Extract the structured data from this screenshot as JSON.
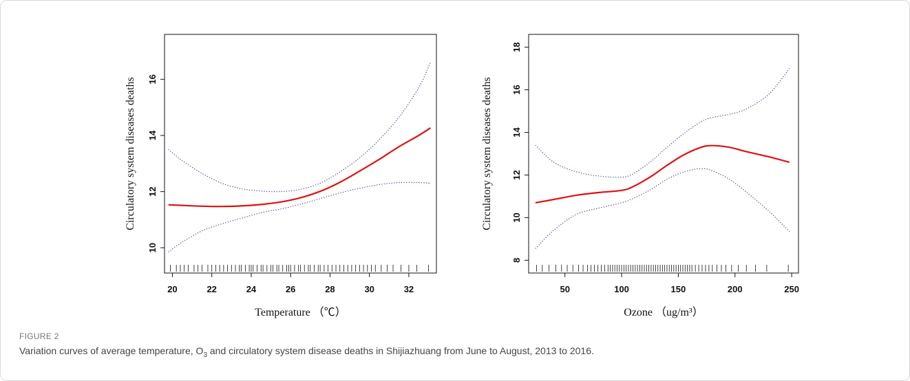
{
  "figure": {
    "label": "FIGURE 2",
    "caption_pre": "Variation curves of average temperature, O",
    "caption_sub": "3",
    "caption_post": " and circulatory system disease deaths in Shijiazhuang from June to August, 2013 to 2016."
  },
  "colors": {
    "fit": "#e01010",
    "ci": "#2a2a8a",
    "axis": "#111111"
  },
  "chart_data": [
    {
      "type": "line",
      "xlabel": "Temperature （℃）",
      "ylabel": "Circulatory system diseases deaths",
      "xlim": [
        19.6,
        33.4
      ],
      "ylim": [
        9.1,
        17.6
      ],
      "xticks": [
        20,
        22,
        24,
        26,
        28,
        30,
        32
      ],
      "yticks": [
        10,
        12,
        14,
        16
      ],
      "x": [
        19.8,
        20.5,
        21.5,
        22.5,
        23.5,
        24.5,
        25.5,
        26.5,
        27.5,
        28.5,
        29.5,
        30.5,
        31.5,
        32.5,
        33.1
      ],
      "series": [
        {
          "role": "fit",
          "values": [
            11.53,
            11.51,
            11.48,
            11.47,
            11.49,
            11.54,
            11.63,
            11.78,
            12.01,
            12.33,
            12.73,
            13.15,
            13.6,
            14.0,
            14.27
          ]
        },
        {
          "role": "ci-upper",
          "values": [
            13.5,
            13.1,
            12.65,
            12.3,
            12.1,
            12.02,
            12.0,
            12.08,
            12.3,
            12.7,
            13.2,
            13.85,
            14.65,
            15.7,
            16.6
          ]
        },
        {
          "role": "ci-lower",
          "values": [
            9.85,
            10.2,
            10.6,
            10.85,
            11.05,
            11.25,
            11.38,
            11.55,
            11.75,
            11.95,
            12.12,
            12.25,
            12.32,
            12.32,
            12.3
          ]
        }
      ],
      "rug": [
        19.9,
        20.2,
        20.4,
        20.6,
        20.8,
        21.1,
        21.3,
        21.5,
        21.8,
        22.0,
        22.2,
        22.4,
        22.6,
        22.8,
        23.0,
        23.2,
        23.4,
        23.5,
        23.7,
        23.9,
        24.0,
        24.1,
        24.3,
        24.5,
        24.6,
        24.8,
        25.0,
        25.1,
        25.3,
        25.4,
        25.6,
        25.8,
        25.9,
        26.0,
        26.2,
        26.4,
        26.5,
        26.7,
        26.9,
        27.0,
        27.2,
        27.4,
        27.5,
        27.7,
        27.9,
        28.1,
        28.3,
        28.5,
        28.7,
        28.9,
        29.1,
        29.3,
        29.5,
        29.7,
        29.9,
        30.1,
        30.3,
        30.6,
        30.9,
        31.2,
        31.6,
        32.0,
        32.4,
        33.0
      ]
    },
    {
      "type": "line",
      "xlabel": "Ozone （ug/m³）",
      "ylabel": "Circulatory system diseases deaths",
      "xlim": [
        18,
        256
      ],
      "ylim": [
        7.4,
        18.6
      ],
      "xticks": [
        50,
        100,
        150,
        200,
        250
      ],
      "yticks": [
        8,
        10,
        12,
        14,
        16,
        18
      ],
      "x": [
        24,
        40,
        60,
        80,
        100,
        110,
        125,
        140,
        155,
        170,
        180,
        195,
        210,
        230,
        248
      ],
      "series": [
        {
          "role": "fit",
          "values": [
            10.7,
            10.85,
            11.05,
            11.18,
            11.28,
            11.45,
            11.9,
            12.45,
            12.95,
            13.3,
            13.38,
            13.3,
            13.1,
            12.85,
            12.6
          ]
        },
        {
          "role": "ci-upper",
          "values": [
            13.4,
            12.6,
            12.15,
            11.95,
            11.9,
            12.05,
            12.6,
            13.3,
            13.95,
            14.5,
            14.7,
            14.85,
            15.1,
            15.8,
            17.0
          ]
        },
        {
          "role": "ci-lower",
          "values": [
            8.55,
            9.4,
            10.15,
            10.45,
            10.7,
            10.9,
            11.3,
            11.8,
            12.15,
            12.3,
            12.2,
            11.8,
            11.2,
            10.3,
            9.35
          ]
        }
      ],
      "rug": [
        25,
        30,
        36,
        42,
        47,
        52,
        57,
        62,
        66,
        70,
        73,
        76,
        79,
        82,
        85,
        88,
        90,
        92,
        94,
        96,
        98,
        100,
        102,
        104,
        106,
        108,
        110,
        112,
        114,
        116,
        118,
        120,
        122,
        124,
        126,
        128,
        130,
        132,
        134,
        136,
        138,
        140,
        142,
        144,
        146,
        148,
        150,
        152,
        154,
        156,
        158,
        160,
        162,
        165,
        168,
        171,
        174,
        177,
        180,
        184,
        188,
        192,
        197,
        203,
        210,
        218,
        228,
        247
      ]
    }
  ]
}
